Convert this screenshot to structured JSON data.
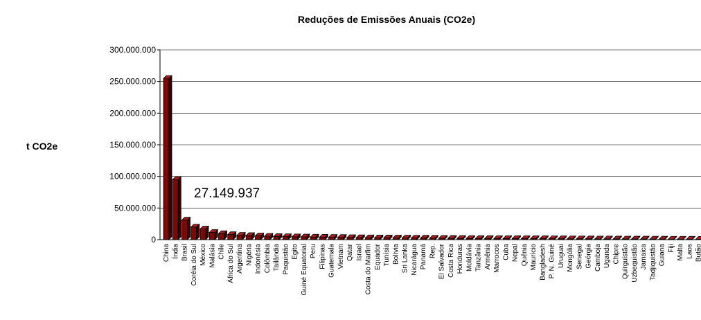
{
  "chart_data": {
    "type": "bar",
    "title": "Reduções de Emissões Anuais (CO2e)",
    "xlabel": "",
    "ylabel": "t CO2e",
    "ylim": [
      0,
      300000000
    ],
    "yticks": [
      0,
      50000000,
      100000000,
      150000000,
      200000000,
      250000000,
      300000000
    ],
    "ytick_labels": [
      "0",
      "50.000.000",
      "100.000.000",
      "150.000.000",
      "200.000.000",
      "250.000.000",
      "300.000.000"
    ],
    "grid": true,
    "style": "3d-bar",
    "bar_color": "#7a0a0a",
    "annotation": "27.149.937",
    "categories": [
      "China",
      "Índia",
      "Brasil",
      "Coréia do Sul",
      "México",
      "Malásia",
      "Chile",
      "África do Sul",
      "Argentina",
      "Nigéria",
      "Indonésia",
      "Colômbia",
      "Tailândia",
      "Paquistão",
      "Egito",
      "Guiné Equatorial",
      "Peru",
      "Filipinas",
      "Guatemala",
      "Vietnam",
      "Qatar",
      "Israel",
      "Costa do Marfim",
      "Equador",
      "Tunísia",
      "Bolívia",
      "Sri Lanka",
      "Nicarágua",
      "Panamá",
      "Rep.",
      "El Salvador",
      "Costa Rica",
      "Honduras",
      "Moldávia",
      "Tanzânia",
      "Armênia",
      "Marrocos",
      "Cuba",
      "Nepal",
      "Quênia",
      "Maurício",
      "Bangladesh",
      "P. N. Guiné",
      "Uruguai",
      "Mongólia",
      "Senegal",
      "Geórgia",
      "Camboja",
      "Uganda",
      "Chipre",
      "Quirguistão",
      "Uzbequistão",
      "Jamaica",
      "Tadjiquistão",
      "Guiana",
      "Fiji",
      "Malta",
      "Laos",
      "Butão"
    ],
    "values": [
      255000000,
      95000000,
      31000000,
      20000000,
      17000000,
      11500000,
      9500000,
      8000000,
      7000000,
      6500000,
      6000000,
      5500000,
      5000000,
      4800000,
      4500000,
      4300000,
      4100000,
      3900000,
      3700000,
      3500000,
      3300000,
      3100000,
      3000000,
      2900000,
      2800000,
      2700000,
      2600000,
      2500000,
      2400000,
      2300000,
      2200000,
      2100000,
      2000000,
      1950000,
      1900000,
      1850000,
      1800000,
      1750000,
      1700000,
      1650000,
      1600000,
      1550000,
      1500000,
      1450000,
      1400000,
      1350000,
      1300000,
      1250000,
      1200000,
      1150000,
      1100000,
      1050000,
      1000000,
      950000,
      900000,
      850000,
      800000,
      750000,
      700000
    ]
  }
}
